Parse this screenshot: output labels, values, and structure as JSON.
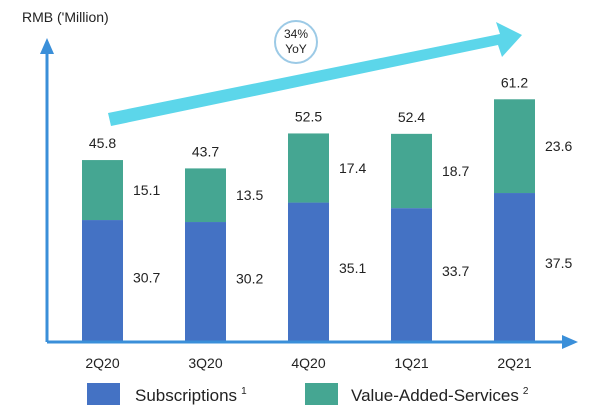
{
  "chart_data": {
    "type": "bar",
    "stacked": true,
    "unit_label": "RMB ('Million)",
    "categories": [
      "2Q20",
      "3Q20",
      "4Q20",
      "1Q21",
      "2Q21"
    ],
    "series": [
      {
        "name": "Subscriptions",
        "superscript": "1",
        "values": [
          30.7,
          30.2,
          35.1,
          33.7,
          37.5
        ],
        "color": "#4472C4"
      },
      {
        "name": "Value-Added-Services",
        "superscript": "2",
        "values": [
          15.1,
          13.5,
          17.4,
          18.7,
          23.6
        ],
        "color": "#45A692"
      }
    ],
    "totals": [
      "45.8",
      "43.7",
      "52.5",
      "52.4",
      "61.2"
    ],
    "ylim": [
      0,
      70
    ],
    "grid": false,
    "legend_position": "bottom",
    "annotation": {
      "line1": "34%",
      "line2": "YoY"
    },
    "colors": {
      "axis": "#3A8FD9",
      "trend_arrow": "#5CD6EA",
      "badge_border": "#9CCAE6",
      "badge_text": "#4F8FC4"
    }
  }
}
